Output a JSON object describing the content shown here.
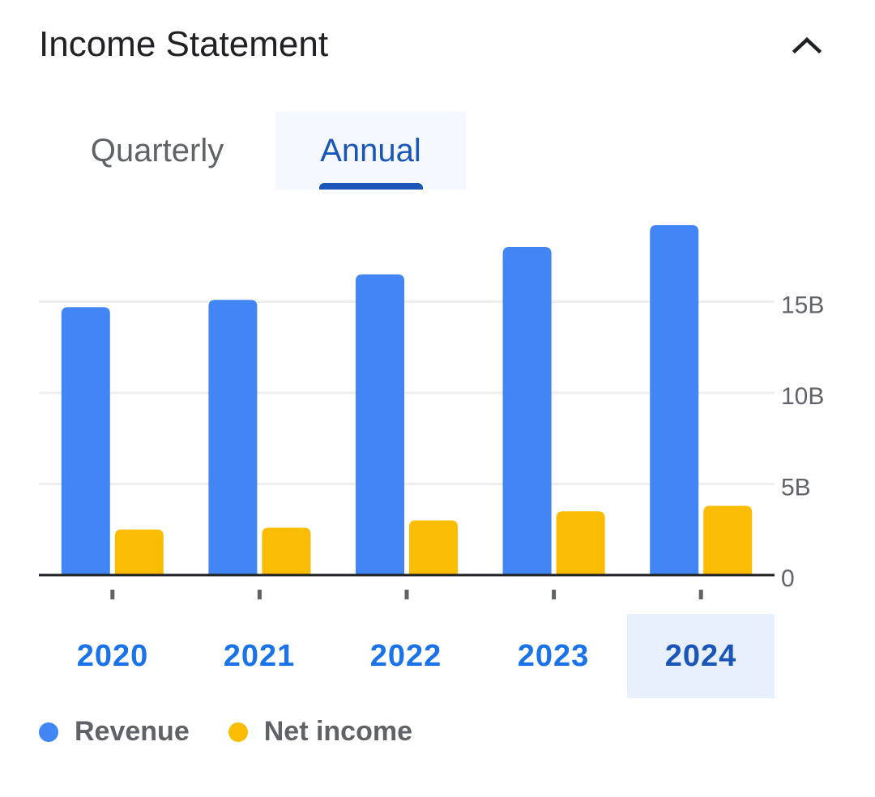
{
  "header": {
    "title": "Income Statement",
    "collapse_icon": "chevron-up-icon"
  },
  "tabs": [
    {
      "label": "Quarterly",
      "selected": false
    },
    {
      "label": "Annual",
      "selected": true
    }
  ],
  "colors": {
    "revenue": "#4285f4",
    "net_income": "#fbbc04",
    "accent": "#1a56b8",
    "year_label": "#1a73e8",
    "selected_bg": "#e8f0fe"
  },
  "selected_year": "2024",
  "chart_data": {
    "type": "bar",
    "categories": [
      "2020",
      "2021",
      "2022",
      "2023",
      "2024"
    ],
    "series": [
      {
        "name": "Revenue",
        "values": [
          14.7,
          15.1,
          16.5,
          18.0,
          19.2
        ]
      },
      {
        "name": "Net income",
        "values": [
          2.5,
          2.6,
          3.0,
          3.5,
          3.8
        ]
      }
    ],
    "yticks": [
      "0",
      "5B",
      "10B",
      "15B"
    ],
    "ytick_values": [
      0,
      5,
      10,
      15
    ],
    "ylim": [
      0,
      20
    ],
    "unit": "B",
    "grid": true,
    "y_axis_side": "right",
    "legend_position": "bottom-left"
  },
  "legend": [
    {
      "label": "Revenue"
    },
    {
      "label": "Net income"
    }
  ]
}
